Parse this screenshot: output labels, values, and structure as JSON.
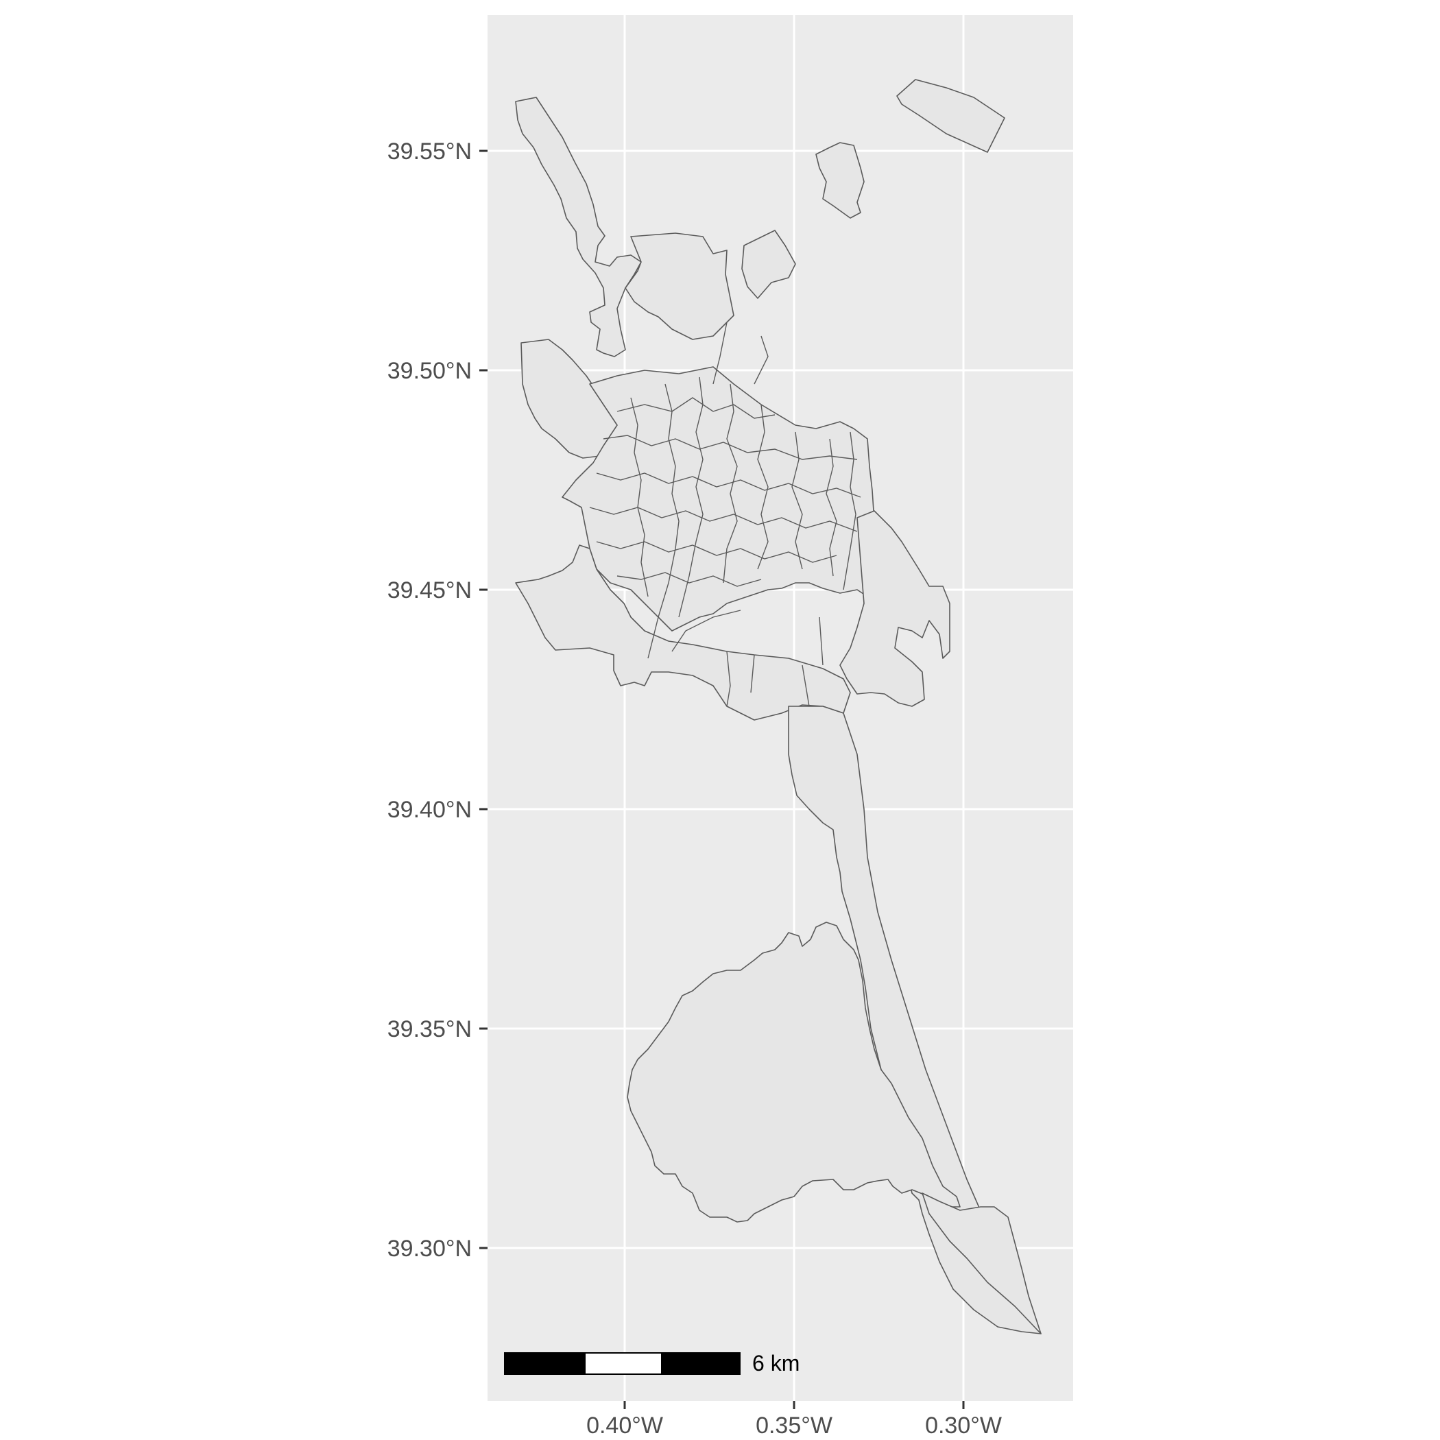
{
  "map": {
    "panel_background": "#ebebeb",
    "grid_color": "#ffffff",
    "polygon_fill": "#e6e6e6",
    "polygon_stroke": "#5a5a5a",
    "y_axis": {
      "ticks": [
        {
          "value": 39.55,
          "label": "39.55°N"
        },
        {
          "value": 39.5,
          "label": "39.50°N"
        },
        {
          "value": 39.45,
          "label": "39.45°N"
        },
        {
          "value": 39.4,
          "label": "39.40°N"
        },
        {
          "value": 39.35,
          "label": "39.35°N"
        },
        {
          "value": 39.3,
          "label": "39.30°N"
        }
      ]
    },
    "x_axis": {
      "ticks": [
        {
          "value": -0.4,
          "label": "0.40°W"
        },
        {
          "value": -0.35,
          "label": "0.35°W"
        },
        {
          "value": -0.3,
          "label": "0.30°W"
        }
      ]
    },
    "scale_bar": {
      "label": "6 km",
      "segments": [
        "#000000",
        "#ffffff",
        "#000000"
      ]
    }
  }
}
